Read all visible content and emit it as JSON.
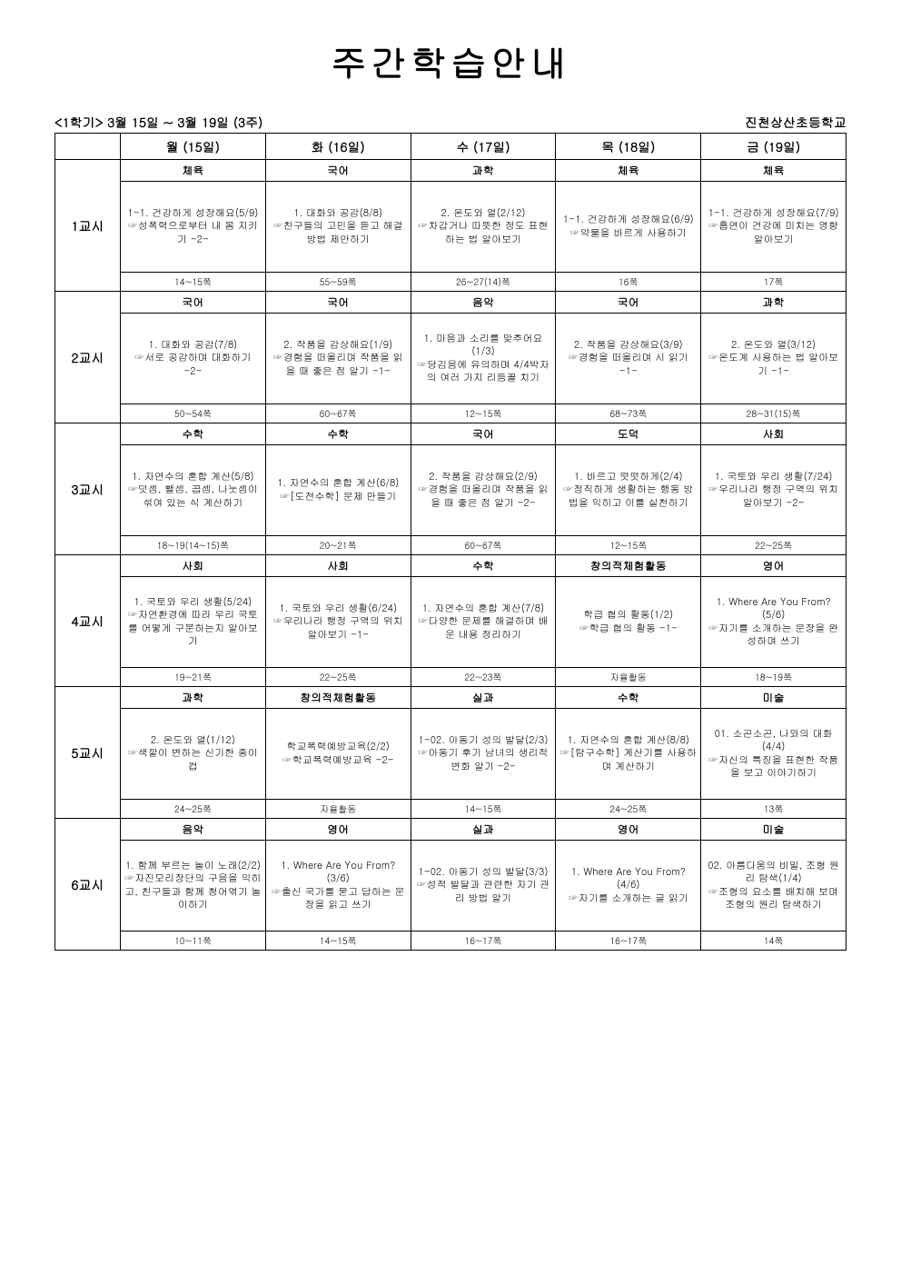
{
  "title": "주간학습안내",
  "meta_left": "<1학기> 3월 15일 ~ 3월 19일 (3주)",
  "meta_right": "진천상산초등학교",
  "days": [
    "월 (15일)",
    "화 (16일)",
    "수 (17일)",
    "목 (18일)",
    "금 (19일)"
  ],
  "periods": [
    {
      "label": "1교시",
      "cells": [
        {
          "subject": "체육",
          "body": "1-1. 건강하게 성장해요(5/9)\n☞성폭력으로부터 내 몸 지키기 -2-",
          "page": "14~15쪽"
        },
        {
          "subject": "국어",
          "body": "1. 대화와 공감(8/8)\n☞친구들의 고민을 듣고 해결 방법 제안하기",
          "page": "55~59쪽"
        },
        {
          "subject": "과학",
          "body": "2. 온도와 열(2/12)\n☞차갑거나 따뜻한 정도 표현하는 법 알아보기",
          "page": "26~27(14)쪽"
        },
        {
          "subject": "체육",
          "body": "1-1. 건강하게 성장해요(6/9)\n☞약물을 바르게 사용하기",
          "page": "16쪽"
        },
        {
          "subject": "체육",
          "body": "1-1. 건강하게 성장해요(7/9)\n☞흡연이 건강에 미치는 영향 알아보기",
          "page": "17쪽"
        }
      ]
    },
    {
      "label": "2교시",
      "cells": [
        {
          "subject": "국어",
          "body": "1. 대화와 공감(7/8)\n☞서로 공감하며 대화하기 -2-",
          "page": "50~54쪽"
        },
        {
          "subject": "국어",
          "body": "2. 작품을 감상해요(1/9)\n☞경험을 떠올리며 작품을 읽을 때 좋은 점 알기 -1-",
          "page": "60~67쪽"
        },
        {
          "subject": "음악",
          "body": "1. 마음과 소리를 맞추어요(1/3)\n☞당김음에 유의하며 4/4박자의 여러 가지 리듬꼴 치기",
          "page": "12~15쪽"
        },
        {
          "subject": "국어",
          "body": "2. 작품을 감상해요(3/9)\n☞경험을 떠올리며 시 읽기 -1-",
          "page": "68~73쪽"
        },
        {
          "subject": "과학",
          "body": "2. 온도와 열(3/12)\n☞온도계 사용하는 법 알아보기 -1-",
          "page": "28~31(15)쪽"
        }
      ]
    },
    {
      "label": "3교시",
      "cells": [
        {
          "subject": "수학",
          "body": "1. 자연수의 혼합 계산(5/8)\n☞덧셈, 뺄셈, 곱셈, 나눗셈이 섞여 있는 식 계산하기",
          "page": "18~19(14~15)쪽"
        },
        {
          "subject": "수학",
          "body": "1. 자연수의 혼합 계산(6/8)\n☞[도전수학] 문제 만들기",
          "page": "20~21쪽"
        },
        {
          "subject": "국어",
          "body": "2. 작품을 감상해요(2/9)\n☞경험을 떠올리며 작품을 읽을 때 좋은 점 알기 -2-",
          "page": "60~67쪽"
        },
        {
          "subject": "도덕",
          "body": "1. 바르고 떳떳하게(2/4)\n☞정직하게 생활하는 행동 방법을 익히고 이를 실천하기",
          "page": "12~15쪽"
        },
        {
          "subject": "사회",
          "body": "1. 국토와 우리 생활(7/24)\n☞우리나라 행정 구역의 위치 알아보기 -2-",
          "page": "22~25쪽"
        }
      ]
    },
    {
      "label": "4교시",
      "cells": [
        {
          "subject": "사회",
          "body": "1. 국토와 우리 생활(5/24)\n☞자연환경에 따라 우리 국토를 어떻게 구분하는지 알아보기",
          "page": "19~21쪽"
        },
        {
          "subject": "사회",
          "body": "1. 국토와 우리 생활(6/24)\n☞우리나라 행정 구역의 위치 알아보기 -1-",
          "page": "22~25쪽"
        },
        {
          "subject": "수학",
          "body": "1. 자연수의 혼합 계산(7/8)\n☞다양한 문제를 해결하며 배운 내용 정리하기",
          "page": "22~23쪽"
        },
        {
          "subject": "창의적체험활동",
          "body": "학급 협의 활동(1/2)\n☞학급 협의 활동 -1-",
          "page": "자율활동"
        },
        {
          "subject": "영어",
          "body": "1. Where Are You From?(5/6)\n☞자기를 소개하는 문장을 완성하며 쓰기",
          "page": "18~19쪽"
        }
      ]
    },
    {
      "label": "5교시",
      "cells": [
        {
          "subject": "과학",
          "body": "2. 온도와 열(1/12)\n☞색깔이 변하는 신기한 종이컵",
          "page": "24~25쪽"
        },
        {
          "subject": "창의적체험활동",
          "body": "학교폭력예방교육(2/2)\n☞학교폭력예방교육 -2-",
          "page": "자율활동"
        },
        {
          "subject": "실과",
          "body": "1-02. 아동기 성의 발달(2/3)\n☞아동기 후기 남녀의 생리적 변화 알기 -2-",
          "page": "14~15쪽"
        },
        {
          "subject": "수학",
          "body": "1. 자연수의 혼합 계산(8/8)\n☞[탐구수학] 계산기를 사용하며 계산하기",
          "page": "24~25쪽"
        },
        {
          "subject": "미술",
          "body": "01. 소곤소곤, 나와의 대화(4/4)\n☞자신의 특징을 표현한 작품을 보고 이야기하기",
          "page": "13쪽"
        }
      ]
    },
    {
      "label": "6교시",
      "cells": [
        {
          "subject": "음악",
          "body": "1. 함께 부르는 놀이 노래(2/2)\n☞자진모리장단의 구음을 익히고, 친구들과 함께 청어엮기 놀이하기",
          "page": "10~11쪽"
        },
        {
          "subject": "영어",
          "body": "1. Where Are You From?(3/6)\n☞출신 국가를 묻고 답하는 문장을 읽고 쓰기",
          "page": "14~15쪽"
        },
        {
          "subject": "실과",
          "body": "1-02. 아동기 성의 발달(3/3)\n☞성적 발달과 관련한 자기 관리 방법 알기",
          "page": "16~17쪽"
        },
        {
          "subject": "영어",
          "body": "1. Where Are You From?(4/6)\n☞자기를 소개하는 글 읽기",
          "page": "16~17쪽"
        },
        {
          "subject": "미술",
          "body": "02. 아름다움의 비밀, 조형 원리 탐색(1/4)\n☞조형의 요소를 배치해 보며 조형의 원리 탐색하기",
          "page": "14쪽"
        }
      ]
    }
  ]
}
